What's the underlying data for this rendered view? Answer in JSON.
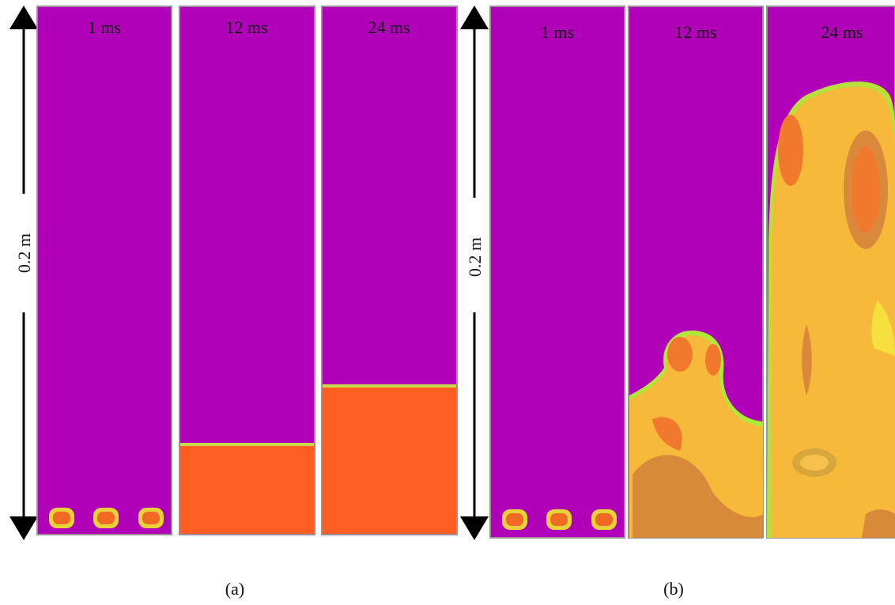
{
  "panels": [
    {
      "label": "(a)",
      "scale": "0.2 m",
      "frames": [
        "1 ms",
        "12 ms",
        "24 ms"
      ]
    },
    {
      "label": "(b)",
      "scale": "0.2 m",
      "frames": [
        "1 ms",
        "12 ms",
        "24 ms"
      ]
    }
  ]
}
